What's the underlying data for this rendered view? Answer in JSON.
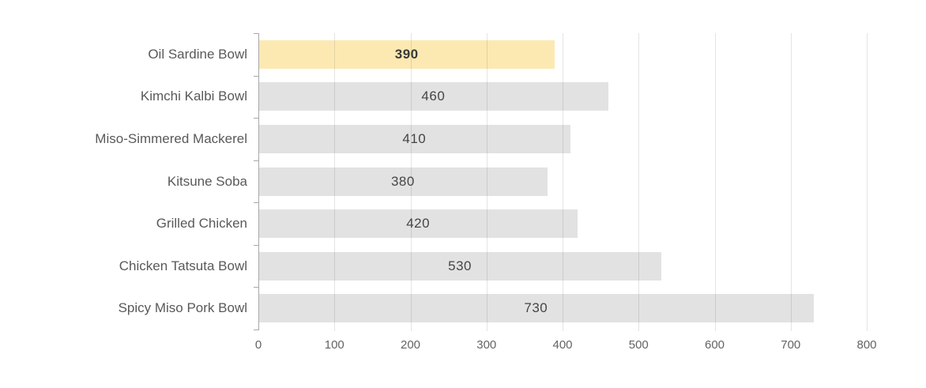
{
  "chart_data": {
    "type": "bar",
    "orientation": "horizontal",
    "title": "",
    "categories": [
      "Oil Sardine Bowl",
      "Kimchi Kalbi Bowl",
      "Miso-Simmered Mackerel",
      "Kitsune Soba",
      "Grilled Chicken",
      "Chicken Tatsuta Bowl",
      "Spicy Miso Pork Bowl"
    ],
    "values": [
      390,
      460,
      410,
      380,
      420,
      530,
      730
    ],
    "data_labels": [
      "390",
      "460",
      "410",
      "380",
      "420",
      "530",
      "730"
    ],
    "highlighted_index": 0,
    "highlighted_category": "Oil Sardine Bowl",
    "xlim": [
      0,
      800
    ],
    "x_ticks": [
      0,
      100,
      200,
      300,
      400,
      500,
      600,
      700,
      800
    ],
    "grid": "vertical",
    "legend": "none",
    "data_label_position": "inside-center"
  },
  "colors": {
    "background": "#ffffff",
    "bar_default": "#e2e2e2",
    "bar_highlight": "#fce9b2",
    "gridline": "rgba(90,90,90,0.16)",
    "axis_line": "#a8a8a8",
    "category_label": "#595959",
    "value_label": "#454545",
    "value_label_highlight": "#393939",
    "tick_label": "#636363"
  }
}
